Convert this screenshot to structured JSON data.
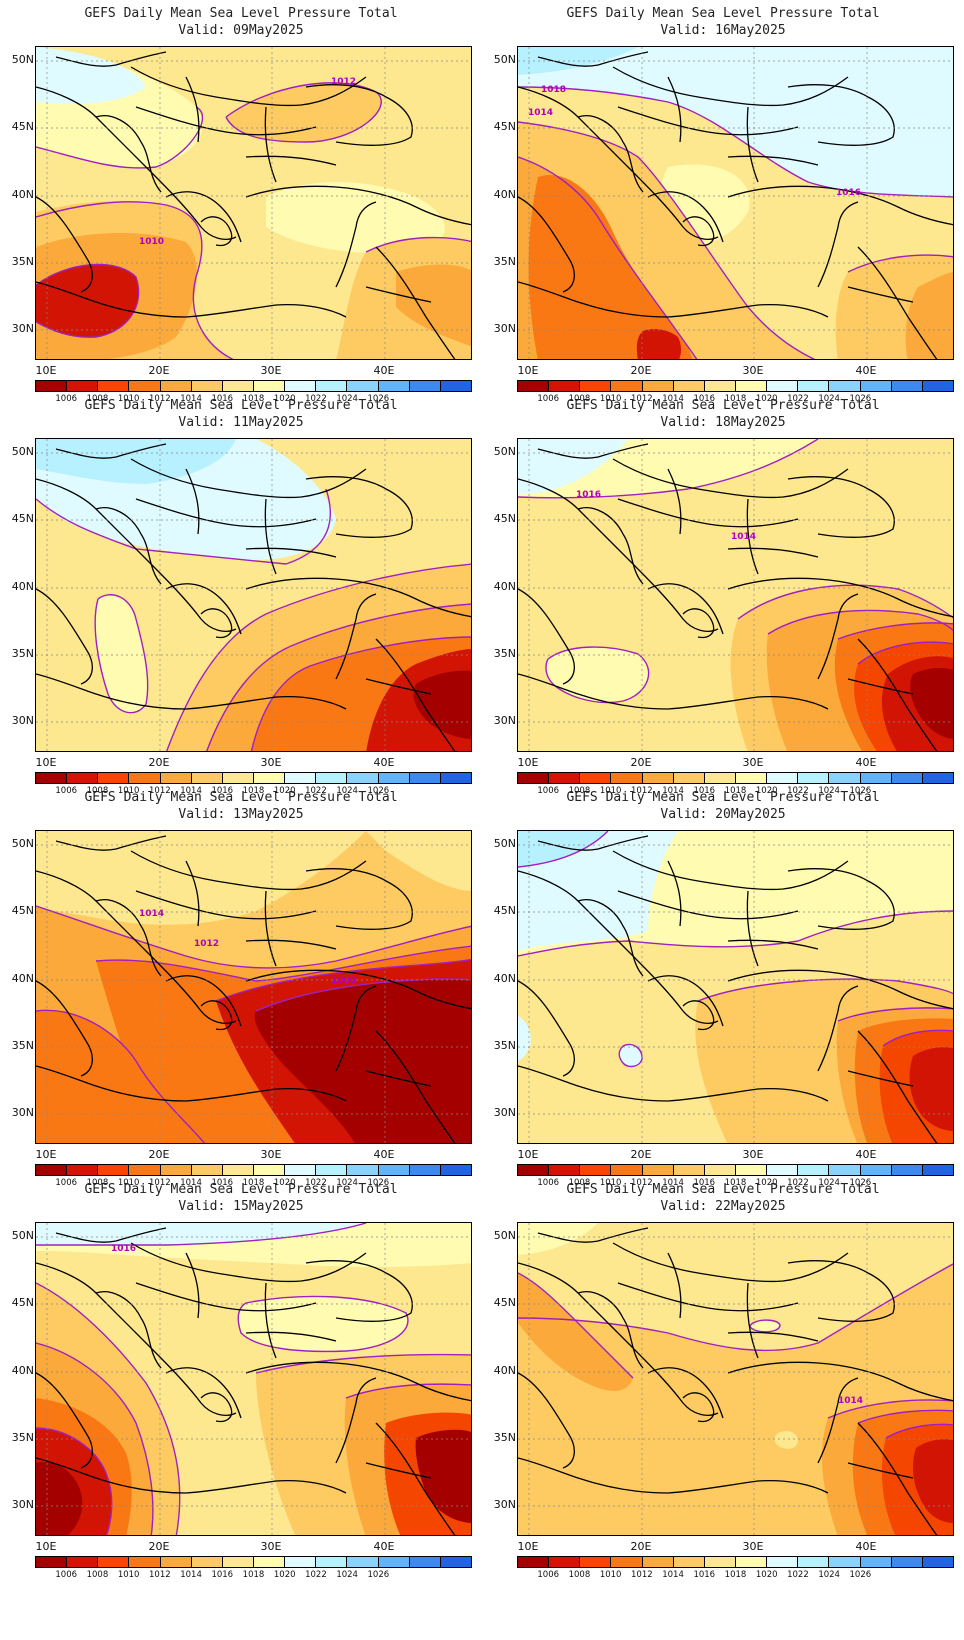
{
  "title_text": "GEFS Daily Mean Sea Level Pressure Total",
  "lat_labels": [
    "50N",
    "45N",
    "40N",
    "35N",
    "30N"
  ],
  "lon_labels": [
    "10E",
    "20E",
    "30E",
    "40E"
  ],
  "colorbar": {
    "colors": [
      "#a50000",
      "#d21405",
      "#f54600",
      "#fa7814",
      "#fba93a",
      "#fdcb62",
      "#fde78f",
      "#fffbb0",
      "#e0fbff",
      "#b7f0ff",
      "#8ad3ff",
      "#5fb5fb",
      "#3a8af3",
      "#1e64e5"
    ],
    "labels": [
      "1006",
      "1008",
      "1010",
      "1012",
      "1014",
      "1016",
      "1018",
      "1020",
      "1022",
      "1024",
      "1026"
    ]
  },
  "panels": [
    {
      "valid": "Valid: 09May2025",
      "contour_labels": [
        "1012",
        "1010"
      ],
      "scheme": "a"
    },
    {
      "valid": "Valid: 16May2025",
      "contour_labels": [
        "1018",
        "1014",
        "1016"
      ],
      "scheme": "b"
    },
    {
      "valid": "Valid: 11May2025",
      "contour_labels": [],
      "scheme": "c"
    },
    {
      "valid": "Valid: 18May2025",
      "contour_labels": [
        "1016",
        "1014"
      ],
      "scheme": "d"
    },
    {
      "valid": "Valid: 13May2025",
      "contour_labels": [
        "1014",
        "1012",
        "1008"
      ],
      "scheme": "e"
    },
    {
      "valid": "Valid: 20May2025",
      "contour_labels": [],
      "scheme": "f"
    },
    {
      "valid": "Valid: 15May2025",
      "contour_labels": [
        "1016"
      ],
      "scheme": "g"
    },
    {
      "valid": "Valid: 22May2025",
      "contour_labels": [
        "1014"
      ],
      "scheme": "h"
    }
  ]
}
